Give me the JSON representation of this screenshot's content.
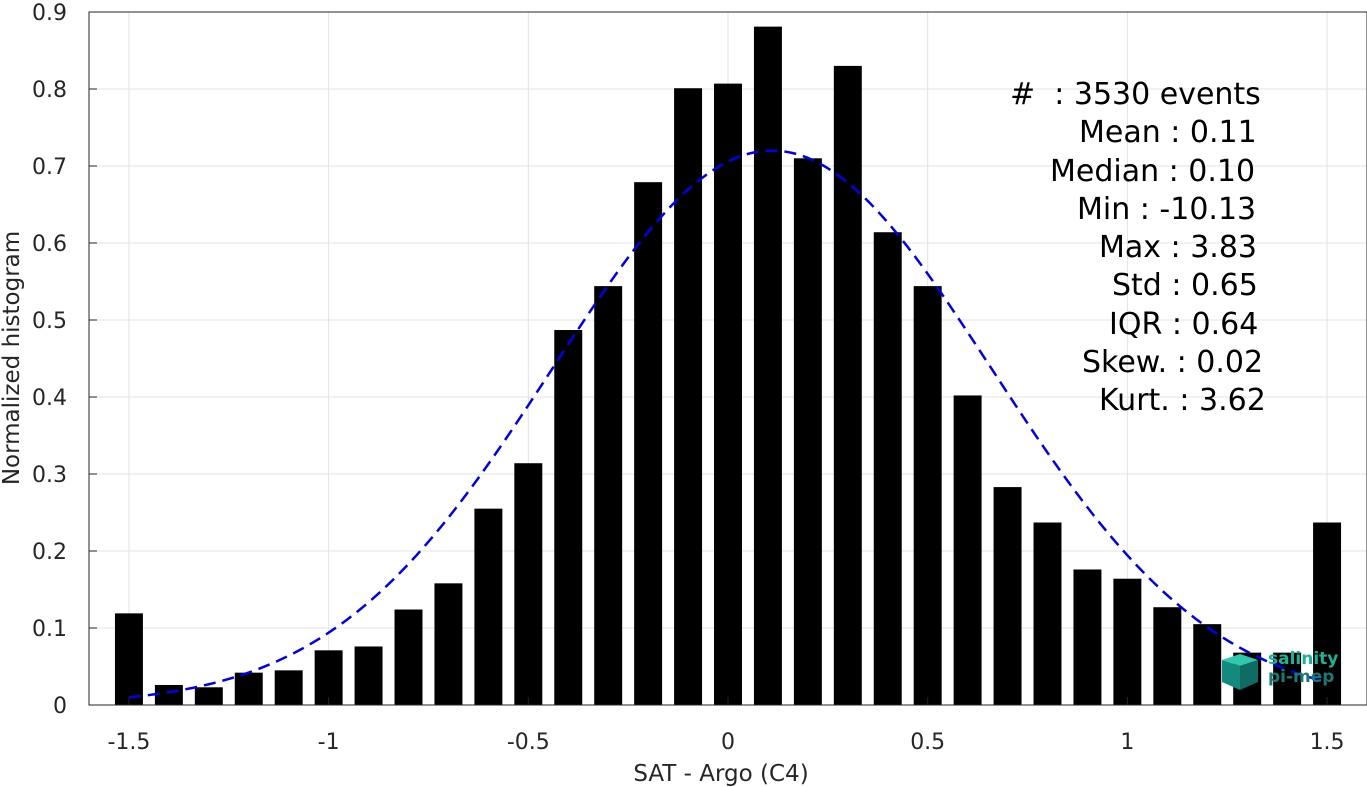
{
  "chart_data": {
    "type": "bar",
    "xlabel": "SAT - Argo (C4)",
    "ylabel": "Normalized histogram",
    "xlim": [
      -1.6,
      1.6
    ],
    "ylim": [
      0,
      0.9
    ],
    "xticks": [
      -1.5,
      -1,
      -0.5,
      0,
      0.5,
      1,
      1.5
    ],
    "xtick_labels": [
      "-1.5",
      "-1",
      "-0.5",
      "0",
      "0.5",
      "1",
      "1.5"
    ],
    "yticks": [
      0,
      0.1,
      0.2,
      0.3,
      0.4,
      0.5,
      0.6,
      0.7,
      0.8,
      0.9
    ],
    "ytick_labels": [
      "0",
      "0.1",
      "0.2",
      "0.3",
      "0.4",
      "0.5",
      "0.6",
      "0.7",
      "0.8",
      "0.9"
    ],
    "grid": true,
    "x": [
      -1.5,
      -1.4,
      -1.3,
      -1.2,
      -1.1,
      -1.0,
      -0.9,
      -0.8,
      -0.7,
      -0.6,
      -0.5,
      -0.4,
      -0.3,
      -0.2,
      -0.1,
      0.0,
      0.1,
      0.2,
      0.3,
      0.4,
      0.5,
      0.6,
      0.7,
      0.8,
      0.9,
      1.0,
      1.1,
      1.2,
      1.3,
      1.4,
      1.5
    ],
    "values": [
      0.119,
      0.026,
      0.023,
      0.042,
      0.045,
      0.071,
      0.076,
      0.124,
      0.158,
      0.255,
      0.314,
      0.487,
      0.544,
      0.679,
      0.801,
      0.807,
      0.881,
      0.71,
      0.83,
      0.614,
      0.544,
      0.402,
      0.283,
      0.237,
      0.176,
      0.164,
      0.127,
      0.105,
      0.068,
      0.068,
      0.237
    ],
    "bar_color": "#000000",
    "fit": {
      "style": "dashed",
      "color": "#0000ee",
      "mean": 0.11,
      "std": 0.55,
      "peak": 0.72,
      "x_range": [
        -1.5,
        1.5
      ]
    }
  },
  "stats": [
    "#  : 3530 events",
    "Mean : 0.11",
    "Median : 0.10",
    "Min : -10.13",
    "Max : 3.83",
    "Std : 0.65",
    "IQR : 0.64",
    "Skew. : 0.02",
    "Kurt. : 3.62"
  ],
  "logo": {
    "line1": "salinity",
    "line2": "pi-mep",
    "color1": "#19b39a",
    "color2": "#1a7a74"
  }
}
